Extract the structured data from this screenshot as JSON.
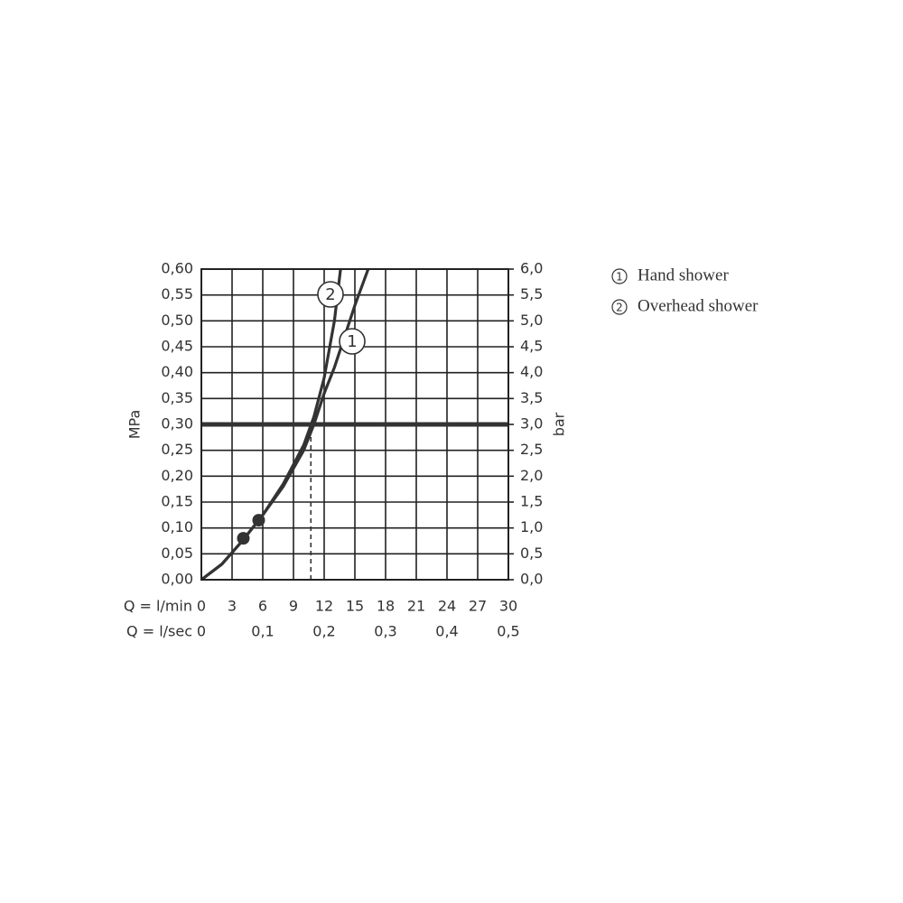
{
  "chart_data": {
    "type": "line",
    "ylabel": "MPa",
    "y2label": "bar",
    "xlabel": "Q = l/min",
    "x2label": "Q = l/sec",
    "xlim": [
      0,
      30
    ],
    "xticks": [
      0,
      3,
      6,
      9,
      12,
      15,
      18,
      21,
      24,
      27,
      30
    ],
    "x2lim": [
      0,
      0.5
    ],
    "x2ticks": [
      0,
      {
        "value": 0.1,
        "label": "0,1"
      },
      {
        "value": 0.2,
        "label": "0,2"
      },
      {
        "value": 0.3,
        "label": "0,3"
      },
      {
        "value": 0.4,
        "label": "0,4"
      },
      {
        "value": 0.5,
        "label": "0,5"
      }
    ],
    "ylim": [
      0,
      0.6
    ],
    "yticks": [
      {
        "value": 0,
        "label": "0,00"
      },
      {
        "value": 0.05,
        "label": "0,05"
      },
      {
        "value": 0.1,
        "label": "0,10"
      },
      {
        "value": 0.15,
        "label": "0,15"
      },
      {
        "value": 0.2,
        "label": "0,20"
      },
      {
        "value": 0.25,
        "label": "0,25"
      },
      {
        "value": 0.3,
        "label": "0,30"
      },
      {
        "value": 0.35,
        "label": "0,35"
      },
      {
        "value": 0.4,
        "label": "0,40"
      },
      {
        "value": 0.45,
        "label": "0,45"
      },
      {
        "value": 0.5,
        "label": "0,50"
      },
      {
        "value": 0.55,
        "label": "0,55"
      },
      {
        "value": 0.6,
        "label": "0,60"
      }
    ],
    "y2lim": [
      0,
      6
    ],
    "y2ticks": [
      {
        "value": 0,
        "label": "0,0"
      },
      {
        "value": 0.5,
        "label": "0,5"
      },
      {
        "value": 1,
        "label": "1,0"
      },
      {
        "value": 1.5,
        "label": "1,5"
      },
      {
        "value": 2,
        "label": "2,0"
      },
      {
        "value": 2.5,
        "label": "2,5"
      },
      {
        "value": 3,
        "label": "3,0"
      },
      {
        "value": 3.5,
        "label": "3,5"
      },
      {
        "value": 4,
        "label": "4,0"
      },
      {
        "value": 4.5,
        "label": "4,5"
      },
      {
        "value": 5,
        "label": "5,0"
      },
      {
        "value": 5.5,
        "label": "5,5"
      },
      {
        "value": 6,
        "label": "6,0"
      }
    ],
    "grid": true,
    "series": [
      {
        "name": "Hand shower",
        "label": "1",
        "color": "#333333",
        "x": [
          0,
          2,
          4,
          6,
          8,
          10,
          11,
          12,
          13,
          14,
          15,
          16.3
        ],
        "values": [
          0,
          0.03,
          0.075,
          0.125,
          0.18,
          0.25,
          0.3,
          0.36,
          0.41,
          0.47,
          0.53,
          0.6
        ]
      },
      {
        "name": "Overhead shower",
        "label": "2",
        "color": "#333333",
        "x": [
          0,
          2,
          4,
          6,
          8,
          10,
          11,
          12,
          13,
          13.6
        ],
        "values": [
          0,
          0.03,
          0.075,
          0.125,
          0.185,
          0.26,
          0.315,
          0.39,
          0.5,
          0.6
        ]
      }
    ],
    "points": [
      {
        "x": 4.1,
        "y": 0.08
      },
      {
        "x": 5.6,
        "y": 0.115
      }
    ],
    "reference_line": {
      "y": 0.3
    },
    "drop_line": {
      "x": 10.7,
      "y": 0.28
    }
  }
}
